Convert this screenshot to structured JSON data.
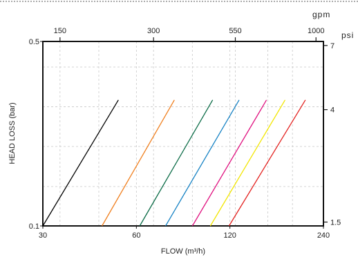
{
  "chart_data": {
    "type": "line",
    "x_scale": "log",
    "y_scale": "log",
    "xlabel": "FLOW (m³/h)",
    "ylabel": "HEAD LOSS  (bar)",
    "xlim": [
      30,
      240
    ],
    "ylim": [
      0.1,
      0.5
    ],
    "x_ticks": [
      {
        "value": 30,
        "label": "30"
      },
      {
        "value": 60,
        "label": "60"
      },
      {
        "value": 120,
        "label": "120"
      },
      {
        "value": 240,
        "label": "240"
      }
    ],
    "y_ticks": [
      {
        "value": 0.1,
        "label": "0.1"
      },
      {
        "value": 0.5,
        "label": "0.5"
      }
    ],
    "x_grid": [
      34.07,
      45.42,
      68.13,
      90.84,
      124.9,
      158.97,
      190.77
    ],
    "y_grid": [
      0.141,
      0.2,
      0.283,
      0.4
    ],
    "top_axis": {
      "unit": "gpm",
      "ticks": [
        {
          "value": 150,
          "label": "150"
        },
        {
          "value": 300,
          "label": "300"
        },
        {
          "value": 550,
          "label": "550"
        },
        {
          "value": 1000,
          "label": "1000"
        }
      ]
    },
    "right_axis": {
      "unit": "psi",
      "ticks": [
        {
          "value": 1.5,
          "label": "1.5"
        },
        {
          "value": 4,
          "label": "4"
        },
        {
          "value": 7,
          "label": "7"
        }
      ]
    },
    "grid": true,
    "series": [
      {
        "color": "#000000",
        "x": [
          30,
          52.5
        ],
        "y": [
          0.1,
          0.3
        ]
      },
      {
        "color": "#f07f1e",
        "x": [
          46.5,
          79.5
        ],
        "y": [
          0.1,
          0.3
        ]
      },
      {
        "color": "#0a6b46",
        "x": [
          61.5,
          105.6
        ],
        "y": [
          0.1,
          0.3
        ]
      },
      {
        "color": "#1682c4",
        "x": [
          74.5,
          128.5
        ],
        "y": [
          0.1,
          0.3
        ]
      },
      {
        "color": "#e0117f",
        "x": [
          90.9,
          157.4
        ],
        "y": [
          0.1,
          0.3
        ]
      },
      {
        "color": "#f2e600",
        "x": [
          103.8,
          180.6
        ],
        "y": [
          0.1,
          0.3
        ]
      },
      {
        "color": "#e3211f",
        "x": [
          119.2,
          210
        ],
        "y": [
          0.1,
          0.3
        ]
      }
    ]
  }
}
